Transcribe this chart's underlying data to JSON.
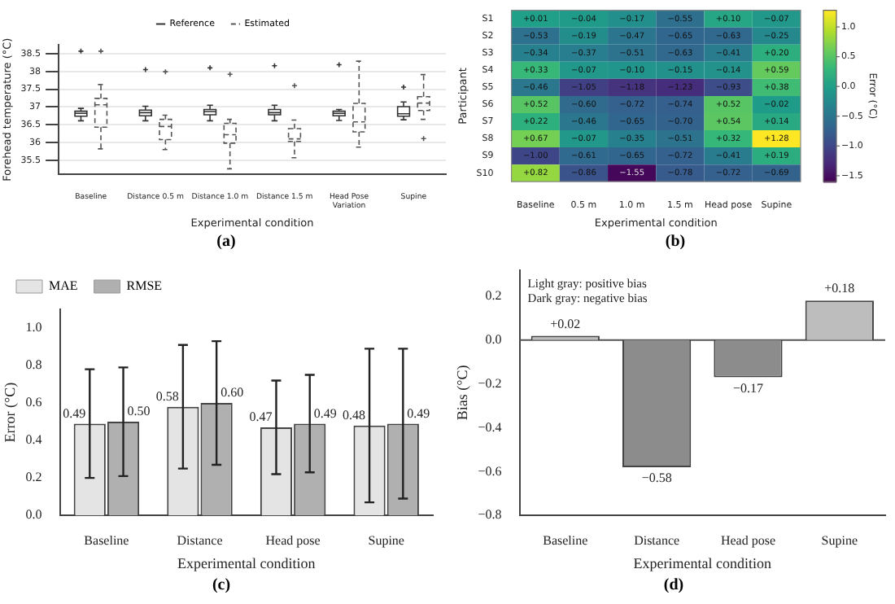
{
  "chart_data": [
    {
      "type": "box",
      "xlabel": "Experimental condition",
      "ylabel": "Forehead temperature (°C)",
      "categories": [
        "Baseline",
        "Distance 0.5 m",
        "Distance 1.0 m",
        "Distance 1.5 m",
        "Head Pose Variation",
        "Supine"
      ],
      "ylim": [
        35.1,
        38.75
      ],
      "yticks": [
        35.5,
        36.0,
        36.5,
        37.0,
        37.5,
        38.0,
        38.5
      ],
      "grid": "y",
      "legend": "top",
      "series": [
        {
          "name": "Reference",
          "color": "#333333",
          "line_style": "solid",
          "boxes": [
            {
              "low": 36.61,
              "q1": 36.74,
              "median": 36.82,
              "q3": 36.88,
              "high": 36.96,
              "outliers": [
                38.57
              ]
            },
            {
              "low": 36.61,
              "q1": 36.75,
              "median": 36.84,
              "q3": 36.91,
              "high": 37.02,
              "outliers": [
                38.05
              ]
            },
            {
              "low": 36.61,
              "q1": 36.78,
              "median": 36.87,
              "q3": 36.93,
              "high": 37.05,
              "outliers": [
                38.1
              ]
            },
            {
              "low": 36.61,
              "q1": 36.78,
              "median": 36.84,
              "q3": 36.93,
              "high": 37.05,
              "outliers": [
                38.16
              ]
            },
            {
              "low": 36.62,
              "q1": 36.75,
              "median": 36.82,
              "q3": 36.88,
              "high": 36.93,
              "outliers": [
                38.19
              ]
            },
            {
              "low": 36.64,
              "q1": 36.74,
              "median": 36.81,
              "q3": 37.01,
              "high": 37.14,
              "outliers": [
                37.56
              ]
            }
          ]
        },
        {
          "name": "Estimated",
          "color": "#555555",
          "line_style": "dashed",
          "boxes": [
            {
              "low": 35.82,
              "q1": 36.43,
              "median": 37.06,
              "q3": 37.24,
              "high": 37.63,
              "outliers": [
                38.57
              ]
            },
            {
              "low": 35.8,
              "q1": 36.08,
              "median": 36.45,
              "q3": 36.65,
              "high": 36.77,
              "outliers": [
                37.99
              ]
            },
            {
              "low": 35.26,
              "q1": 35.98,
              "median": 36.22,
              "q3": 36.54,
              "high": 36.65,
              "outliers": [
                37.92
              ]
            },
            {
              "low": 35.57,
              "q1": 36.03,
              "median": 36.1,
              "q3": 36.39,
              "high": 36.63,
              "outliers": [
                37.6
              ]
            },
            {
              "low": 35.87,
              "q1": 36.3,
              "median": 36.58,
              "q3": 37.1,
              "high": 38.29
            },
            {
              "low": 36.65,
              "q1": 36.9,
              "median": 37.11,
              "q3": 37.29,
              "high": 37.91,
              "outliers": [
                36.11
              ]
            }
          ]
        }
      ],
      "annotations": [
        "(a)"
      ]
    },
    {
      "type": "heatmap",
      "xlabel": "Experimental condition",
      "ylabel": "Participant",
      "clabel": "Error (°C)",
      "categories": [
        "Baseline",
        "0.5 m",
        "1.0 m",
        "1.5 m",
        "Head pose",
        "Supine"
      ],
      "y_categories": [
        "S1",
        "S2",
        "S3",
        "S4",
        "S5",
        "S6",
        "S7",
        "S8",
        "S9",
        "S10"
      ],
      "cells": [
        [
          0.01,
          -0.04,
          -0.17,
          -0.55,
          0.1,
          -0.07
        ],
        [
          -0.53,
          -0.19,
          -0.47,
          -0.65,
          -0.63,
          -0.25
        ],
        [
          -0.34,
          -0.37,
          -0.51,
          -0.63,
          -0.41,
          0.2
        ],
        [
          0.33,
          -0.07,
          -0.1,
          -0.15,
          -0.14,
          0.59
        ],
        [
          -0.46,
          -1.05,
          -1.18,
          -1.23,
          -0.93,
          0.38
        ],
        [
          0.52,
          -0.6,
          -0.72,
          -0.74,
          0.52,
          -0.02
        ],
        [
          0.22,
          -0.46,
          -0.65,
          -0.7,
          0.54,
          0.14
        ],
        [
          0.67,
          -0.07,
          -0.35,
          -0.51,
          0.32,
          1.28
        ],
        [
          -1.0,
          -0.61,
          -0.65,
          -0.72,
          -0.41,
          0.19
        ],
        [
          0.82,
          -0.86,
          -1.55,
          -0.78,
          -0.72,
          -0.69
        ]
      ],
      "cell_labels": [
        [
          "+0.01",
          "−0.04",
          "−0.17",
          "−0.55",
          "+0.10",
          "−0.07"
        ],
        [
          "−0.53",
          "−0.19",
          "−0.47",
          "−0.65",
          "−0.63",
          "−0.25"
        ],
        [
          "−0.34",
          "−0.37",
          "−0.51",
          "−0.63",
          "−0.41",
          "+0.20"
        ],
        [
          "+0.33",
          "−0.07",
          "−0.10",
          "−0.15",
          "−0.14",
          "+0.59"
        ],
        [
          "−0.46",
          "−1.05",
          "−1.18",
          "−1.23",
          "−0.93",
          "+0.38"
        ],
        [
          "+0.52",
          "−0.60",
          "−0.72",
          "−0.74",
          "+0.52",
          "−0.02"
        ],
        [
          "+0.22",
          "−0.46",
          "−0.65",
          "−0.70",
          "+0.54",
          "+0.14"
        ],
        [
          "+0.67",
          "−0.07",
          "−0.35",
          "−0.51",
          "+0.32",
          "+1.28"
        ],
        [
          "−1.00",
          "−0.61",
          "−0.65",
          "−0.72",
          "−0.41",
          "+0.19"
        ],
        [
          "+0.82",
          "−0.86",
          "−1.55",
          "−0.78",
          "−0.72",
          "−0.69"
        ]
      ],
      "clim": [
        -1.6,
        1.28
      ],
      "cticks": [
        {
          "value": -1.5,
          "label": "−1.5"
        },
        {
          "value": -1.0,
          "label": "−1.0"
        },
        {
          "value": -0.5,
          "label": "−0.5"
        },
        {
          "value": 0.0,
          "label": "0.0"
        },
        {
          "value": 0.5,
          "label": "0.5"
        },
        {
          "value": 1.0,
          "label": "1.0"
        }
      ],
      "annotations": [
        "(b)"
      ]
    },
    {
      "type": "bar",
      "xlabel": "Experimental condition",
      "ylabel": "Error (°C)",
      "categories": [
        "Baseline",
        "Distance",
        "Head pose",
        "Supine"
      ],
      "ylim": [
        0,
        1.1
      ],
      "yticks": [
        {
          "value": 0,
          "label": "0.0"
        },
        {
          "value": 0.2,
          "label": "0.2"
        },
        {
          "value": 0.4,
          "label": "0.4"
        },
        {
          "value": 0.6,
          "label": "0.6"
        },
        {
          "value": 0.8,
          "label": "0.8"
        },
        {
          "value": 1.0,
          "label": "1.0"
        }
      ],
      "legend": "top left",
      "series": [
        {
          "name": "MAE",
          "color": "#e4e4e4",
          "values": [
            0.49,
            0.58,
            0.47,
            0.48
          ],
          "errors": [
            [
              0.2,
              0.78
            ],
            [
              0.25,
              0.91
            ],
            [
              0.22,
              0.72
            ],
            [
              0.07,
              0.89
            ]
          ],
          "value_labels": [
            "0.49",
            "0.58",
            "0.47",
            "0.48"
          ]
        },
        {
          "name": "RMSE",
          "color": "#b0b0b0",
          "values": [
            0.5,
            0.6,
            0.49,
            0.49
          ],
          "errors": [
            [
              0.21,
              0.79
            ],
            [
              0.27,
              0.93
            ],
            [
              0.23,
              0.75
            ],
            [
              0.09,
              0.89
            ]
          ],
          "value_labels": [
            "0.50",
            "0.60",
            "0.49",
            "0.49"
          ]
        }
      ],
      "annotations": [
        "(c)"
      ]
    },
    {
      "type": "bar",
      "xlabel": "Experimental condition",
      "ylabel": "Bias (°C)",
      "categories": [
        "Baseline",
        "Distance",
        "Head pose",
        "Supine"
      ],
      "values": [
        0.02,
        -0.58,
        -0.17,
        0.18
      ],
      "colors": [
        "#bdbdbd",
        "#8c8c8c",
        "#8c8c8c",
        "#bdbdbd"
      ],
      "value_labels": [
        "+0.02",
        "−0.58",
        "−0.17",
        "+0.18"
      ],
      "ylim": [
        -0.8,
        0.32
      ],
      "yticks": [
        {
          "value": -0.8,
          "label": "−0.8"
        },
        {
          "value": -0.6,
          "label": "−0.6"
        },
        {
          "value": -0.4,
          "label": "−0.4"
        },
        {
          "value": -0.2,
          "label": "−0.2"
        },
        {
          "value": 0,
          "label": "0.0"
        },
        {
          "value": 0.2,
          "label": "0.2"
        }
      ],
      "ref_lines": [
        {
          "axis": "y",
          "value": 0,
          "label": null,
          "color": "#555555"
        }
      ],
      "annotations": [
        "Light gray: positive bias",
        "Dark gray: negative bias",
        "(d)"
      ]
    }
  ]
}
